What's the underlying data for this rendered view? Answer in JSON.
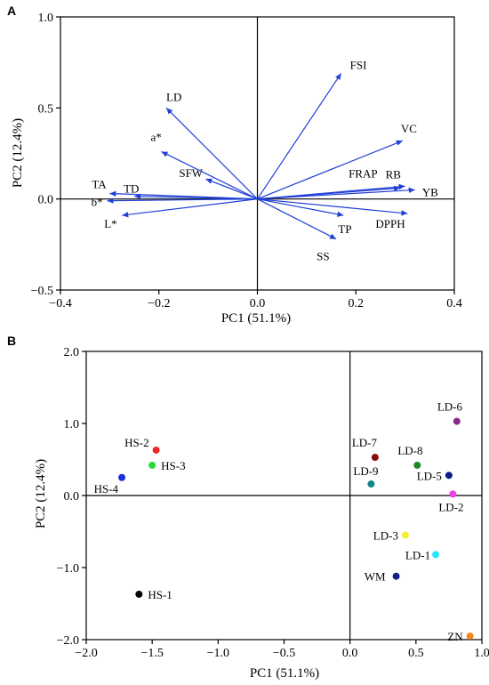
{
  "chart_data": [
    {
      "type": "biplot-loadings",
      "panel_label": "A",
      "xlabel": "PC1 (51.1%)",
      "ylabel": "PC2 (12.4%)",
      "xlim": [
        -0.4,
        0.4
      ],
      "ylim": [
        -0.5,
        1.0
      ],
      "xticks": [
        "−0.4",
        "−0.2",
        "0.0",
        "0.2",
        "0.4"
      ],
      "yticks": [
        "−0.5",
        "0.0",
        "0.5",
        "1.0"
      ],
      "xtick_values": [
        -0.4,
        -0.2,
        0.0,
        0.2,
        0.4
      ],
      "ytick_values": [
        -0.5,
        0.0,
        0.5,
        1.0
      ],
      "vector_color": "#1f3fd6",
      "vectors": [
        {
          "label": "FSI",
          "x": 0.17,
          "y": 0.69
        },
        {
          "label": "LD",
          "x": -0.185,
          "y": 0.5
        },
        {
          "label": "a*",
          "x": -0.195,
          "y": 0.26
        },
        {
          "label": "VC",
          "x": 0.295,
          "y": 0.32
        },
        {
          "label": "FRAP",
          "x": 0.29,
          "y": 0.06
        },
        {
          "label": "RB",
          "x": 0.3,
          "y": 0.07
        },
        {
          "label": "YB",
          "x": 0.32,
          "y": 0.05
        },
        {
          "label": "DPPH",
          "x": 0.305,
          "y": -0.08
        },
        {
          "label": "TP",
          "x": 0.175,
          "y": -0.09
        },
        {
          "label": "SS",
          "x": 0.16,
          "y": -0.22
        },
        {
          "label": "SFW",
          "x": -0.105,
          "y": 0.11
        },
        {
          "label": "TA",
          "x": -0.3,
          "y": 0.03
        },
        {
          "label": "TD",
          "x": -0.25,
          "y": 0.015
        },
        {
          "label": "b*",
          "x": -0.305,
          "y": -0.01
        },
        {
          "label": "L*",
          "x": -0.275,
          "y": -0.09
        }
      ]
    },
    {
      "type": "scatter",
      "panel_label": "B",
      "xlabel": "PC1 (51.1%)",
      "ylabel": "PC2 (12.4%)",
      "xlim": [
        -2.0,
        1.0
      ],
      "ylim": [
        -2.0,
        2.0
      ],
      "xticks": [
        "−2.0",
        "−1.5",
        "−1.0",
        "−0.5",
        "0.0",
        "0.5",
        "1.0"
      ],
      "yticks": [
        "−2.0",
        "−1.0",
        "0.0",
        "1.0",
        "2.0"
      ],
      "xtick_values": [
        -2.0,
        -1.5,
        -1.0,
        -0.5,
        0.0,
        0.5,
        1.0
      ],
      "ytick_values": [
        -2.0,
        -1.0,
        0.0,
        1.0,
        2.0
      ],
      "points": [
        {
          "label": "HS-1",
          "x": -1.6,
          "y": -1.37,
          "color": "#000000"
        },
        {
          "label": "HS-2",
          "x": -1.47,
          "y": 0.63,
          "color": "#e8262a"
        },
        {
          "label": "HS-3",
          "x": -1.5,
          "y": 0.42,
          "color": "#2ad63a"
        },
        {
          "label": "HS-4",
          "x": -1.73,
          "y": 0.25,
          "color": "#1d2fd8"
        },
        {
          "label": "LD-1",
          "x": 0.65,
          "y": -0.82,
          "color": "#22e6f5"
        },
        {
          "label": "LD-2",
          "x": 0.78,
          "y": 0.02,
          "color": "#f040e0"
        },
        {
          "label": "LD-3",
          "x": 0.42,
          "y": -0.55,
          "color": "#f4f030"
        },
        {
          "label": "LD-5",
          "x": 0.75,
          "y": 0.28,
          "color": "#0a1c8c"
        },
        {
          "label": "LD-6",
          "x": 0.81,
          "y": 1.03,
          "color": "#8a2a8a"
        },
        {
          "label": "LD-7",
          "x": 0.19,
          "y": 0.53,
          "color": "#8b0a0a"
        },
        {
          "label": "LD-8",
          "x": 0.51,
          "y": 0.42,
          "color": "#1a8a2a"
        },
        {
          "label": "LD-9",
          "x": 0.16,
          "y": 0.16,
          "color": "#108888"
        },
        {
          "label": "WM",
          "x": 0.35,
          "y": -1.12,
          "color": "#18208a"
        },
        {
          "label": "ZN",
          "x": 0.91,
          "y": -1.95,
          "color": "#f08a20"
        }
      ]
    }
  ]
}
